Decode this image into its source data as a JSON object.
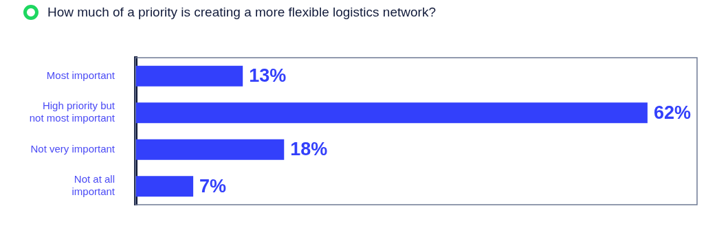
{
  "chart_data": {
    "type": "bar",
    "title": "How much of a priority is creating a more flexible logistics network?",
    "orientation": "horizontal",
    "categories": [
      "Most important",
      "High priority but not most important",
      "Not very important",
      "Not at all important"
    ],
    "values": [
      13,
      62,
      18,
      7
    ],
    "value_labels": [
      "13%",
      "62%",
      "18%",
      "7%"
    ],
    "color": "#3340fb",
    "xlim": [
      0,
      68
    ],
    "tick_labels": "y",
    "legend": false
  }
}
